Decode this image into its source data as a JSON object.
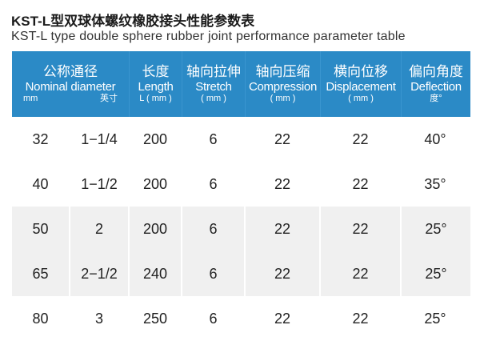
{
  "title": "KST-L型双球体螺纹橡胶接头性能参数表",
  "subtitle": "KST-L type double sphere rubber joint performance parameter table",
  "header_color": "#2b8ac6",
  "columns": [
    {
      "cn": "公称通径",
      "en": "Nominal diameter",
      "unit_left": "mm",
      "unit_right": "英寸"
    },
    {
      "cn": "长度",
      "en": "Length",
      "unit": "L ( mm )"
    },
    {
      "cn": "轴向拉伸",
      "en": "Stretch",
      "unit": "( mm )"
    },
    {
      "cn": "轴向压缩",
      "en": "Compression",
      "unit": "( mm )"
    },
    {
      "cn": "横向位移",
      "en": "Displacement",
      "unit": "( mm )"
    },
    {
      "cn": "偏向角度",
      "en": "Deflection",
      "unit": "度°"
    }
  ],
  "rows": [
    [
      "32",
      "1−1/4",
      "200",
      "6",
      "22",
      "22",
      "40°"
    ],
    [
      "40",
      "1−1/2",
      "200",
      "6",
      "22",
      "22",
      "35°"
    ],
    [
      "50",
      "2",
      "200",
      "6",
      "22",
      "22",
      "25°"
    ],
    [
      "65",
      "2−1/2",
      "240",
      "6",
      "22",
      "22",
      "25°"
    ],
    [
      "80",
      "3",
      "250",
      "6",
      "22",
      "22",
      "25°"
    ]
  ]
}
